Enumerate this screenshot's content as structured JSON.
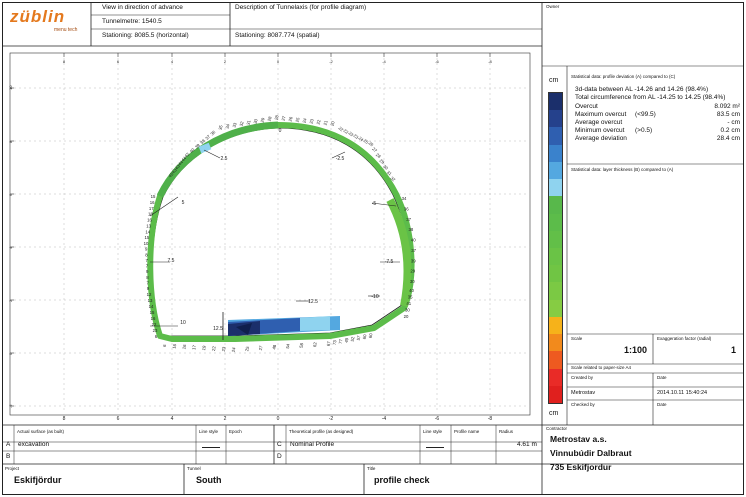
{
  "header": {
    "logo_text": "züblin",
    "logo_sub": "menu tech",
    "view_label": "View in direction of advance",
    "tunnelmetre": "Tunnelmetre: 1540.5",
    "stationing_h": "Stationing: 8085.5 (horizontal)",
    "description_label": "Description of Tunnelaxis (for profile diagram)",
    "stationing_s": "Stationing: 8087.774 (spatial)",
    "owner_label": "Owner"
  },
  "colorbar": {
    "unit_top": "cm",
    "unit_bottom": "cm",
    "colors": [
      "#1b2f6b",
      "#25418c",
      "#2f5fb0",
      "#3a82cc",
      "#54a8e0",
      "#8fd3ef",
      "#58b84b",
      "#5cbc4a",
      "#62bf48",
      "#6ac346",
      "#70c544",
      "#7bc944",
      "#86cc43",
      "#f6b21a",
      "#f28a1c",
      "#ee5a20",
      "#e92b27",
      "#e0201e"
    ]
  },
  "stats_a": {
    "title": "Statistical data: profile deviation (A) compared to (C)",
    "line1": "3d-data between AL -14.26 and 14.26 (98.4%)",
    "line2": "Total circumference from AL -14.25 to 14.25 (98.4%)",
    "rows": [
      {
        "label": "Overcut",
        "cond": "",
        "value": "8.092 m²"
      },
      {
        "label": "Maximum overcut",
        "cond": "(<99.5)",
        "value": "83.5 cm"
      },
      {
        "label": "Average overcut",
        "cond": "",
        "value": "- cm"
      },
      {
        "label": "Minimum overcut",
        "cond": "(>0.5)",
        "value": "0.2 cm"
      },
      {
        "label": "Average deviation",
        "cond": "",
        "value": "28.4 cm"
      }
    ]
  },
  "stats_b": {
    "title": "Statistical data: layer thickness (B) compared to (A)"
  },
  "scale": {
    "label": "Scale",
    "value": "1:100",
    "exag_label": "Exaggeration factor (radial)",
    "exag_value": "1",
    "note": "Scale related to paper-size A4"
  },
  "signoff": {
    "created_label": "Created by",
    "created_value": "Metrostav",
    "date_label": "Date",
    "date_value": "2014.10.11 15:40:24",
    "checked_label": "Checked by",
    "checked_date_label": "Date"
  },
  "profiles": {
    "actual_header": "Actual surface (as built)",
    "line_style": "Line style",
    "epoch": "Epoch",
    "theoretical_header": "Theoretical profile (as designed)",
    "line_style2": "Line style",
    "profile_name": "Profile name",
    "radius": "Radius",
    "row_a": "A",
    "row_a_value": "excavation",
    "row_b": "B",
    "row_c": "C",
    "row_c_value": "Nominal Profile",
    "row_c_radius": "4.61 m",
    "row_d": "D"
  },
  "contractor": {
    "label": "Contractor",
    "name": "Metrostav a.s.",
    "street": "Vinnubúdir Dalbraut",
    "city": "735 Eskifjordur"
  },
  "footer": {
    "project_label": "Project",
    "project_value": "Eskifjördur",
    "tunnel_label": "Tunnel",
    "tunnel_value": "South",
    "title_label": "Title",
    "title_value": "profile check"
  },
  "axes": {
    "x_ticks": [
      "8",
      "6",
      "4",
      "2",
      "0",
      "-2",
      "-4",
      "-6",
      "-8"
    ],
    "y_ticks": [
      "10",
      "8",
      "6",
      "4",
      "2",
      "0",
      "-2"
    ]
  },
  "plot_labels": {
    "left_top": [
      "45",
      "43",
      "43",
      "44",
      "44",
      "42",
      "40",
      "39",
      "38",
      "37",
      "36"
    ],
    "top": [
      "35",
      "34",
      "33",
      "32",
      "31",
      "30",
      "29",
      "28",
      "28",
      "27",
      "26",
      "25",
      "24",
      "23",
      "22",
      "21",
      "20"
    ],
    "right_top": [
      "22",
      "22",
      "23",
      "23",
      "24",
      "25",
      "26",
      "27",
      "28",
      "29",
      "30",
      "31",
      "32"
    ],
    "right_side": [
      "34",
      "36",
      "37",
      "38",
      "40",
      "37",
      "39",
      "29",
      "30",
      "40",
      "35",
      "41",
      "30",
      "20"
    ],
    "left_side": [
      "15",
      "16",
      "17",
      "18",
      "16",
      "13",
      "14",
      "15",
      "10",
      "9",
      "8",
      "7",
      "7",
      "9",
      "8",
      "7",
      "9",
      "12",
      "13",
      "14",
      "15",
      "16",
      "22",
      "23",
      "6"
    ],
    "bottom": [
      "6",
      "16",
      "16",
      "17",
      "19",
      "22",
      "23",
      "24",
      "25",
      "27",
      "48",
      "54",
      "58",
      "62",
      "67",
      "73",
      "77",
      "49",
      "52",
      "57",
      "60",
      "60"
    ],
    "tag_mid": "12.5",
    "tag_left": "12.5",
    "tag_left2": "10",
    "tag_10r": "-10",
    "tag_75l": "7.5",
    "tag_75r": "-7.5",
    "tag_5l": "5",
    "tag_5r": "-5",
    "tag_25l": "2.5",
    "tag_25r": "-2.5",
    "tag_0": "0"
  }
}
